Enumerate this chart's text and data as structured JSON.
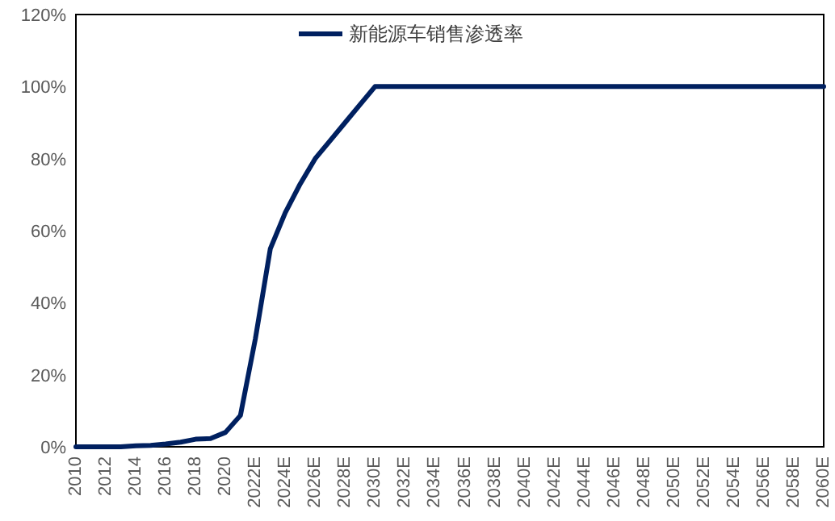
{
  "chart_data": {
    "type": "line",
    "categories": [
      "2010",
      null,
      "2012",
      null,
      "2014",
      null,
      "2016",
      null,
      "2018",
      null,
      "2020",
      null,
      "2022E",
      null,
      "2024E",
      null,
      "2026E",
      null,
      "2028E",
      null,
      "2030E",
      null,
      "2032E",
      null,
      "2034E",
      null,
      "2036E",
      null,
      "2038E",
      null,
      "2040E",
      null,
      "2042E",
      null,
      "2044E",
      null,
      "2046E",
      null,
      "2048E",
      null,
      "2050E",
      null,
      "2052E",
      null,
      "2054E",
      null,
      "2056E",
      null,
      "2058E",
      null,
      "2060E"
    ],
    "series": [
      {
        "name": "新能源车销售渗透率",
        "color": "#002060",
        "values": [
          0,
          0,
          0,
          0,
          0.3,
          0.4,
          0.8,
          1.3,
          2.1,
          2.3,
          4.0,
          8.7,
          30,
          55,
          65,
          73,
          80,
          85,
          90,
          95,
          100,
          100,
          100,
          100,
          100,
          100,
          100,
          100,
          100,
          100,
          100,
          100,
          100,
          100,
          100,
          100,
          100,
          100,
          100,
          100,
          100,
          100,
          100,
          100,
          100,
          100,
          100,
          100,
          100,
          100,
          100
        ]
      }
    ],
    "ylim": [
      0,
      120
    ],
    "yticks": [
      {
        "value": 0,
        "label": "0%"
      },
      {
        "value": 20,
        "label": "20%"
      },
      {
        "value": 40,
        "label": "40%"
      },
      {
        "value": 60,
        "label": "60%"
      },
      {
        "value": 80,
        "label": "80%"
      },
      {
        "value": 100,
        "label": "100%"
      },
      {
        "value": 120,
        "label": "120%"
      }
    ],
    "grid": false,
    "legend": "top",
    "marker": "none",
    "line_style": "solid"
  }
}
